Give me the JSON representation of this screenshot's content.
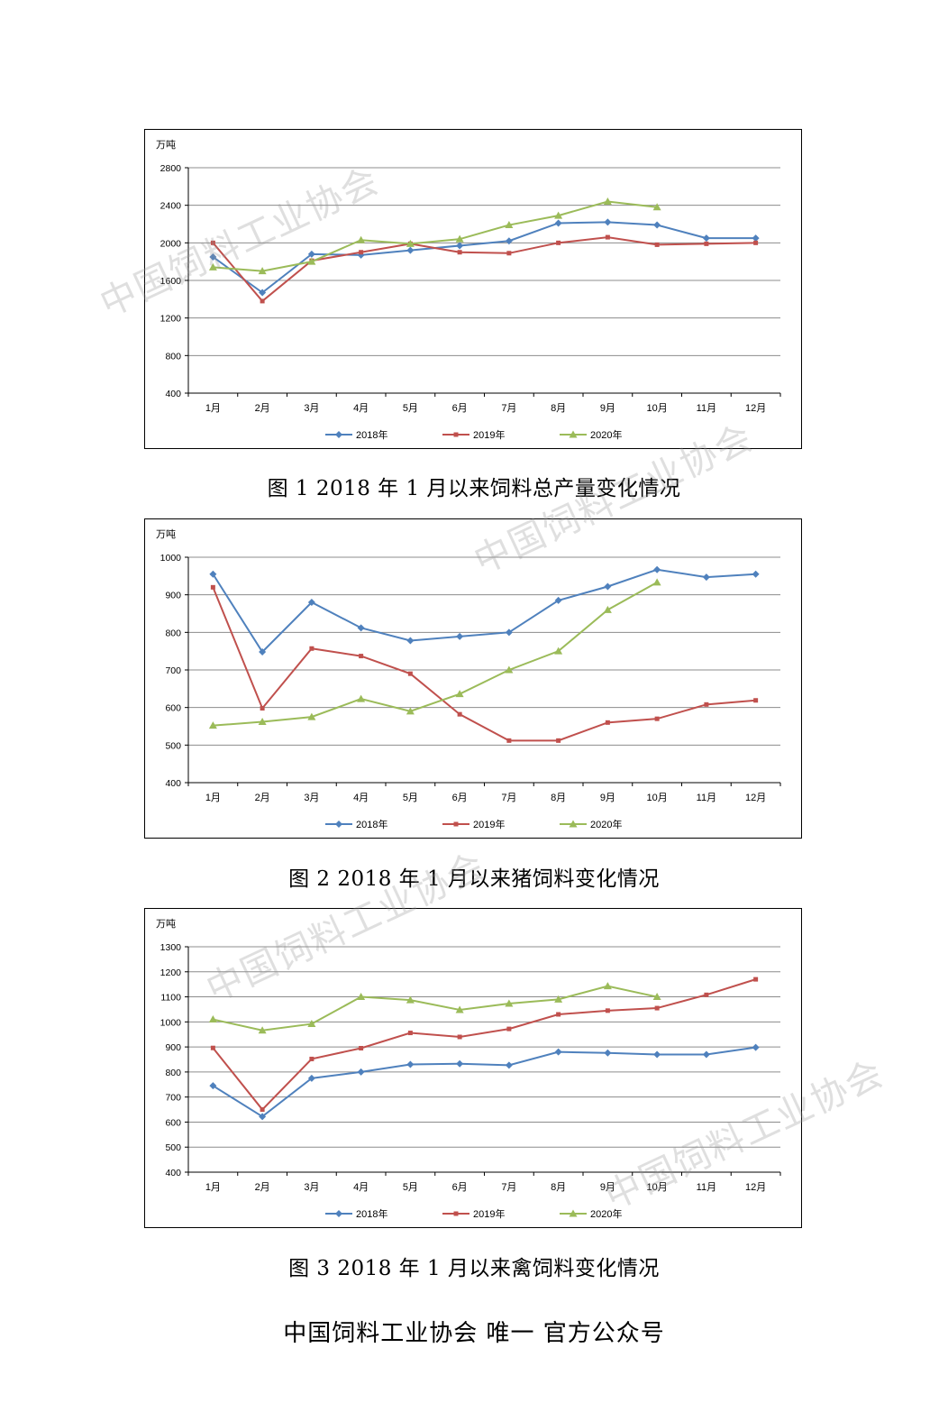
{
  "charts": [
    {
      "caption": "图 1    2018 年 1 月以来饲料总产量变化情况",
      "chart_data": {
        "type": "line",
        "unit_label": "万吨",
        "categories": [
          "1月",
          "2月",
          "3月",
          "4月",
          "5月",
          "6月",
          "7月",
          "8月",
          "9月",
          "10月",
          "11月",
          "12月"
        ],
        "ylim": [
          400,
          2800
        ],
        "yticks": [
          400,
          800,
          1200,
          1600,
          2000,
          2400,
          2800
        ],
        "grid": true,
        "legend_position": "bottom",
        "series": [
          {
            "name": "2018年",
            "color": "#4f81bd",
            "marker": "diamond",
            "values": [
              1850,
              1470,
              1880,
              1870,
              1920,
              1970,
              2020,
              2210,
              2220,
              2190,
              2050,
              2050
            ]
          },
          {
            "name": "2019年",
            "color": "#c0504d",
            "marker": "square",
            "values": [
              2000,
              1380,
              1810,
              1900,
              1990,
              1900,
              1890,
              2000,
              2060,
              1980,
              1990,
              2000
            ]
          },
          {
            "name": "2020年",
            "color": "#9bbb59",
            "marker": "triangle",
            "values": [
              1740,
              1700,
              1800,
              2030,
              1990,
              2040,
              2190,
              2290,
              2440,
              2380,
              null,
              null
            ]
          }
        ]
      }
    },
    {
      "caption": "图 2    2018 年 1 月以来猪饲料变化情况",
      "chart_data": {
        "type": "line",
        "unit_label": "万吨",
        "categories": [
          "1月",
          "2月",
          "3月",
          "4月",
          "5月",
          "6月",
          "7月",
          "8月",
          "9月",
          "10月",
          "11月",
          "12月"
        ],
        "ylim": [
          400,
          1000
        ],
        "yticks": [
          400,
          500,
          600,
          700,
          800,
          900,
          1000
        ],
        "grid": true,
        "legend_position": "bottom",
        "series": [
          {
            "name": "2018年",
            "color": "#4f81bd",
            "marker": "diamond",
            "values": [
              955,
              748,
              880,
              812,
              778,
              789,
              800,
              885,
              922,
              967,
              947,
              955
            ]
          },
          {
            "name": "2019年",
            "color": "#c0504d",
            "marker": "square",
            "values": [
              920,
              598,
              757,
              737,
              690,
              582,
              512,
              512,
              560,
              570,
              608,
              619
            ]
          },
          {
            "name": "2020年",
            "color": "#9bbb59",
            "marker": "triangle",
            "values": [
              552,
              562,
              575,
              623,
              590,
              636,
              700,
              750,
              860,
              933,
              null,
              null
            ]
          }
        ]
      }
    },
    {
      "caption": "图 3    2018 年 1 月以来禽饲料变化情况",
      "chart_data": {
        "type": "line",
        "unit_label": "万吨",
        "categories": [
          "1月",
          "2月",
          "3月",
          "4月",
          "5月",
          "6月",
          "7月",
          "8月",
          "9月",
          "10月",
          "11月",
          "12月"
        ],
        "ylim": [
          400,
          1300
        ],
        "yticks": [
          400,
          500,
          600,
          700,
          800,
          900,
          1000,
          1100,
          1200,
          1300
        ],
        "grid": true,
        "legend_position": "bottom",
        "series": [
          {
            "name": "2018年",
            "color": "#4f81bd",
            "marker": "diamond",
            "values": [
              745,
              622,
              775,
              800,
              830,
              833,
              827,
              880,
              876,
              870,
              870,
              898
            ]
          },
          {
            "name": "2019年",
            "color": "#c0504d",
            "marker": "square",
            "values": [
              896,
              650,
              852,
              895,
              956,
              940,
              972,
              1030,
              1045,
              1055,
              1108,
              1170
            ]
          },
          {
            "name": "2020年",
            "color": "#9bbb59",
            "marker": "triangle",
            "values": [
              1010,
              966,
              992,
              1100,
              1087,
              1048,
              1073,
              1090,
              1143,
              1100,
              null,
              null
            ]
          }
        ]
      }
    }
  ],
  "footer": "中国饲料工业协会  唯一  官方公众号",
  "watermark": "中国饲料工业协会"
}
